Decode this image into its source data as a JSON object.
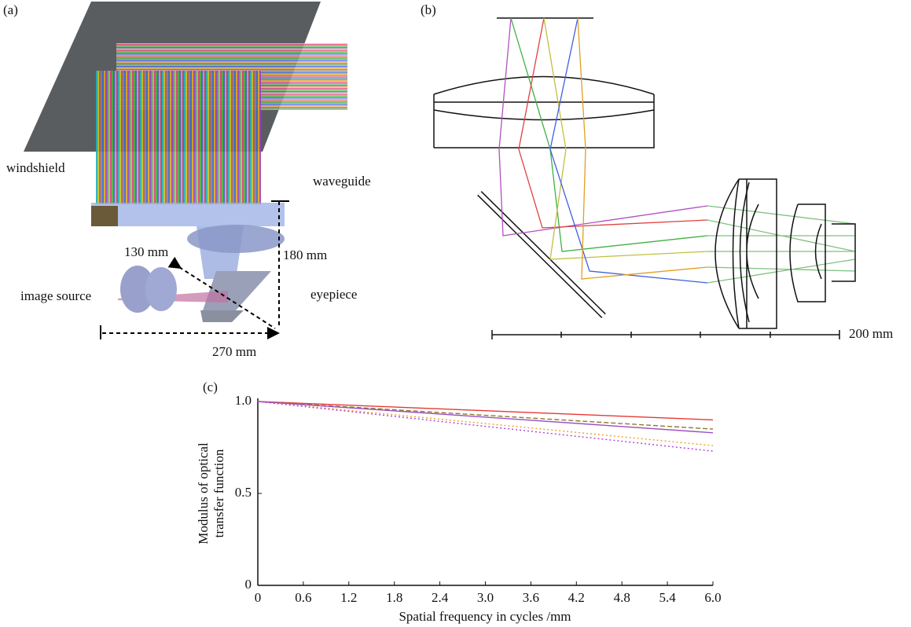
{
  "panels": {
    "a": {
      "label": "(a)",
      "windshield": "windshield",
      "waveguide": "waveguide",
      "dim_130": "130 mm",
      "dim_180": "180 mm",
      "image_source": "image source",
      "eyepiece": "eyepiece",
      "dim_270": "270 mm"
    },
    "b": {
      "label": "(b)",
      "scale": "200 mm"
    }
  },
  "chart_data": {
    "type": "line",
    "panel_label": "(c)",
    "xlabel": "Spatial frequency in cycles /mm",
    "ylabel": [
      "Modulus of optical",
      "transfer function"
    ],
    "x": [
      0,
      6
    ],
    "series": [
      {
        "color": "#e53935",
        "style": "solid",
        "values": [
          1,
          0.9
        ]
      },
      {
        "color": "#8d7a2a",
        "style": "dashed",
        "values": [
          1,
          0.85
        ]
      },
      {
        "color": "#9c4fc4",
        "style": "solid",
        "values": [
          1,
          0.83
        ]
      },
      {
        "color": "#f0a020",
        "style": "dotted",
        "values": [
          1,
          0.76
        ]
      },
      {
        "color": "#b040e0",
        "style": "dotted",
        "values": [
          1,
          0.73
        ]
      }
    ],
    "xlim": [
      0,
      6
    ],
    "ylim": [
      0,
      1
    ],
    "xticks": [
      0,
      0.6,
      1.2,
      1.8,
      2.4,
      {
        "value": 3,
        "label": "3.0"
      },
      3.6,
      4.2,
      4.8,
      5.4,
      {
        "value": 6,
        "label": "6.0"
      }
    ],
    "yticks": [
      0,
      0.5,
      {
        "value": 1,
        "label": "1.0"
      }
    ]
  }
}
